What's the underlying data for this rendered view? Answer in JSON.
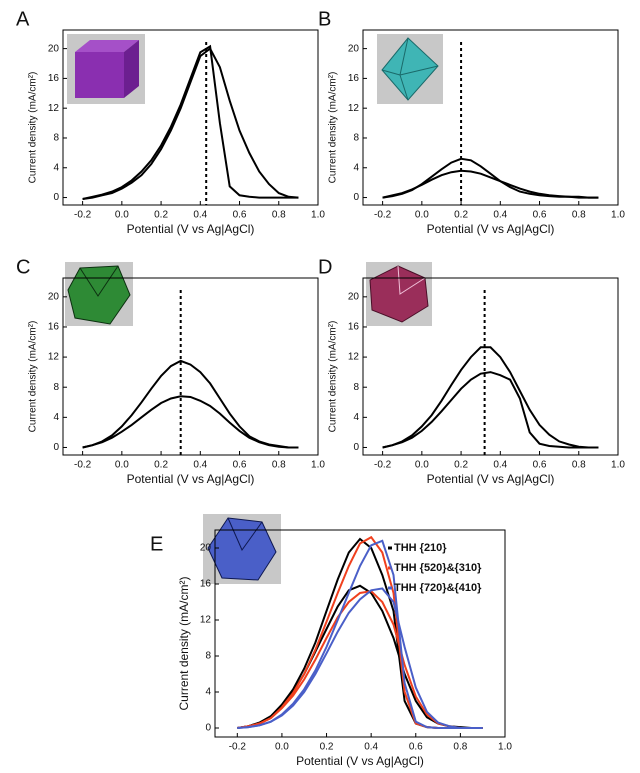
{
  "chart_data": [
    {
      "type": "line",
      "label": "A",
      "x_label": "Potential (V vs Ag|AgCl)",
      "y_label": "Current density (mA/cm²)",
      "x": [
        -0.2,
        -0.15,
        -0.1,
        -0.05,
        0,
        0.05,
        0.1,
        0.15,
        0.2,
        0.25,
        0.3,
        0.35,
        0.4,
        0.45,
        0.5,
        0.55,
        0.6,
        0.65,
        0.7,
        0.75,
        0.8,
        0.85,
        0.9
      ],
      "series": [
        {
          "color": "#000000",
          "values": [
            -0.2,
            0,
            0.3,
            0.6,
            1.2,
            2,
            3,
            4.5,
            6.5,
            9,
            12,
            15.5,
            19,
            20,
            17.5,
            13,
            9,
            6,
            3.5,
            1.8,
            0.6,
            0.1,
            0
          ],
          "values_reverse": [
            -0.2,
            0.1,
            0.4,
            0.8,
            1.4,
            2.3,
            3.5,
            5,
            7,
            9.5,
            12.5,
            16,
            19.5,
            20.3,
            10,
            1.5,
            0.3,
            0.1,
            0,
            0,
            0,
            0,
            0
          ]
        }
      ],
      "peak_potential": 0.43,
      "xlim": [
        -0.3,
        1.0
      ],
      "xticks": [
        -0.2,
        {
          "value": 0,
          "label": "0.0"
        },
        0.2,
        0.4,
        0.6,
        0.8,
        {
          "value": 1,
          "label": "1.0"
        }
      ],
      "ylim": [
        -1,
        22.5
      ],
      "yticks": [
        0,
        4,
        8,
        12,
        16,
        20
      ]
    },
    {
      "type": "line",
      "label": "B",
      "x_label": "Potential (V vs Ag|AgCl)",
      "y_label": "Current density (mA/cm²)",
      "x": [
        -0.2,
        -0.15,
        -0.1,
        -0.05,
        0,
        0.05,
        0.1,
        0.15,
        0.2,
        0.25,
        0.3,
        0.35,
        0.4,
        0.45,
        0.5,
        0.55,
        0.6,
        0.65,
        0.7,
        0.75,
        0.8,
        0.85,
        0.9
      ],
      "series": [
        {
          "color": "#000000",
          "values": [
            0,
            0.2,
            0.5,
            1,
            1.8,
            2.8,
            3.8,
            4.7,
            5.2,
            5,
            4.2,
            3.2,
            2.2,
            1.4,
            0.8,
            0.5,
            0.3,
            0.2,
            0.1,
            0.1,
            0,
            0,
            0
          ],
          "values_reverse": [
            0,
            0.3,
            0.6,
            1.1,
            1.7,
            2.4,
            3,
            3.4,
            3.6,
            3.5,
            3.2,
            2.7,
            2.2,
            1.7,
            1.2,
            0.8,
            0.5,
            0.3,
            0.2,
            0.1,
            0.1,
            0,
            0
          ]
        }
      ],
      "peak_potential": 0.2,
      "xlim": [
        -0.3,
        1.0
      ],
      "xticks": [
        -0.2,
        {
          "value": 0,
          "label": "0.0"
        },
        0.2,
        0.4,
        0.6,
        0.8,
        {
          "value": 1,
          "label": "1.0"
        }
      ],
      "ylim": [
        -1,
        22.5
      ],
      "yticks": [
        0,
        4,
        8,
        12,
        16,
        20
      ]
    },
    {
      "type": "line",
      "label": "C",
      "x_label": "Potential (V vs Ag|AgCl)",
      "y_label": "Current density (mA/cm²)",
      "x": [
        -0.2,
        -0.15,
        -0.1,
        -0.05,
        0,
        0.05,
        0.1,
        0.15,
        0.2,
        0.25,
        0.3,
        0.35,
        0.4,
        0.45,
        0.5,
        0.55,
        0.6,
        0.65,
        0.7,
        0.75,
        0.8,
        0.85,
        0.9
      ],
      "series": [
        {
          "color": "#000000",
          "values": [
            0,
            0.3,
            0.8,
            1.6,
            2.8,
            4.3,
            6,
            7.8,
            9.5,
            10.8,
            11.5,
            11,
            10,
            8.5,
            6.5,
            4.5,
            2.8,
            1.5,
            0.8,
            0.4,
            0.2,
            0,
            0
          ],
          "values_reverse": [
            0,
            0.3,
            0.7,
            1.3,
            2.1,
            3,
            4,
            5,
            5.9,
            6.5,
            6.8,
            6.7,
            6.2,
            5.5,
            4.5,
            3.3,
            2.2,
            1.3,
            0.7,
            0.3,
            0.1,
            0,
            0
          ]
        }
      ],
      "peak_potential": 0.3,
      "xlim": [
        -0.3,
        1.0
      ],
      "xticks": [
        -0.2,
        {
          "value": 0,
          "label": "0.0"
        },
        0.2,
        0.4,
        0.6,
        0.8,
        {
          "value": 1,
          "label": "1.0"
        }
      ],
      "ylim": [
        -1,
        22.5
      ],
      "yticks": [
        0,
        4,
        8,
        12,
        16,
        20
      ]
    },
    {
      "type": "line",
      "label": "D",
      "x_label": "Potential (V vs Ag|AgCl)",
      "y_label": "Current density (mA/cm²)",
      "x": [
        -0.2,
        -0.15,
        -0.1,
        -0.05,
        0,
        0.05,
        0.1,
        0.15,
        0.2,
        0.25,
        0.3,
        0.35,
        0.4,
        0.45,
        0.5,
        0.55,
        0.6,
        0.65,
        0.7,
        0.75,
        0.8,
        0.85,
        0.9
      ],
      "series": [
        {
          "color": "#000000",
          "values": [
            0,
            0.3,
            0.8,
            1.6,
            2.8,
            4.3,
            6.2,
            8.3,
            10.3,
            12,
            13.3,
            13.3,
            12,
            10,
            7.5,
            5,
            3,
            1.7,
            0.8,
            0.4,
            0.1,
            0,
            0
          ],
          "values_reverse": [
            0,
            0.3,
            0.7,
            1.3,
            2.2,
            3.4,
            4.8,
            6.3,
            7.8,
            9,
            9.8,
            10,
            9.6,
            9,
            6.5,
            2,
            0.5,
            0.2,
            0.1,
            0,
            0,
            0,
            0
          ]
        }
      ],
      "peak_potential": 0.32,
      "xlim": [
        -0.3,
        1.0
      ],
      "xticks": [
        -0.2,
        {
          "value": 0,
          "label": "0.0"
        },
        0.2,
        0.4,
        0.6,
        0.8,
        {
          "value": 1,
          "label": "1.0"
        }
      ],
      "ylim": [
        -1,
        22.5
      ],
      "yticks": [
        0,
        4,
        8,
        12,
        16,
        20
      ]
    },
    {
      "type": "line",
      "label": "E",
      "x_label": "Potential (V vs Ag|AgCl)",
      "y_label": "Current density (mA/cm²)",
      "x": [
        -0.2,
        -0.15,
        -0.1,
        -0.05,
        0,
        0.05,
        0.1,
        0.15,
        0.2,
        0.25,
        0.3,
        0.35,
        0.4,
        0.45,
        0.5,
        0.55,
        0.6,
        0.65,
        0.7,
        0.75,
        0.8,
        0.85,
        0.9
      ],
      "series": [
        {
          "name": "THH {210}",
          "color": "#000000",
          "values": [
            0,
            0.2,
            0.6,
            1.3,
            2.5,
            4,
            6,
            8.5,
            11,
            13.5,
            15.3,
            15.8,
            15,
            13,
            10,
            6,
            3,
            1.2,
            0.5,
            0.2,
            0.1,
            0,
            0
          ],
          "values_reverse": [
            0,
            0.2,
            0.6,
            1.3,
            2.6,
            4.3,
            6.6,
            9.5,
            13,
            16.5,
            19.5,
            21,
            20,
            17,
            13,
            3,
            0.5,
            0.1,
            0,
            0,
            0,
            0,
            0
          ]
        },
        {
          "name": "THH {520}&{310}",
          "color": "#f0401e",
          "values": [
            0,
            0.2,
            0.5,
            1.1,
            2.2,
            3.6,
            5.4,
            7.6,
            10,
            12.3,
            14,
            15,
            15.2,
            14,
            11.5,
            7,
            3.5,
            1.5,
            0.5,
            0.2,
            0,
            0,
            0
          ],
          "values_reverse": [
            0,
            0.2,
            0.5,
            1.1,
            2.3,
            3.9,
            6,
            8.7,
            11.8,
            15,
            18,
            20.5,
            21.2,
            19.5,
            15,
            4,
            0.5,
            0.1,
            0,
            0,
            0,
            0,
            0
          ]
        },
        {
          "name": "THH {720}&{410}",
          "color": "#4a5fc8",
          "values": [
            0,
            0.1,
            0.3,
            0.7,
            1.4,
            2.5,
            4,
            6,
            8.3,
            10.7,
            12.8,
            14.3,
            15.3,
            15.5,
            14,
            9,
            4.5,
            1.8,
            0.6,
            0.2,
            0,
            0,
            0
          ],
          "values_reverse": [
            0,
            0.1,
            0.3,
            0.7,
            1.5,
            2.7,
            4.3,
            6.4,
            9,
            12,
            15,
            18,
            20.3,
            20.8,
            17,
            5,
            0.7,
            0.1,
            0,
            0,
            0,
            0,
            0
          ]
        }
      ],
      "xlim": [
        -0.3,
        1.0
      ],
      "xticks": [
        -0.2,
        {
          "value": 0,
          "label": "0.0"
        },
        0.2,
        0.4,
        0.6,
        0.8,
        {
          "value": 1,
          "label": "1.0"
        }
      ],
      "ylim": [
        -1,
        22
      ],
      "yticks": [
        0,
        4,
        8,
        12,
        16,
        20
      ]
    }
  ]
}
